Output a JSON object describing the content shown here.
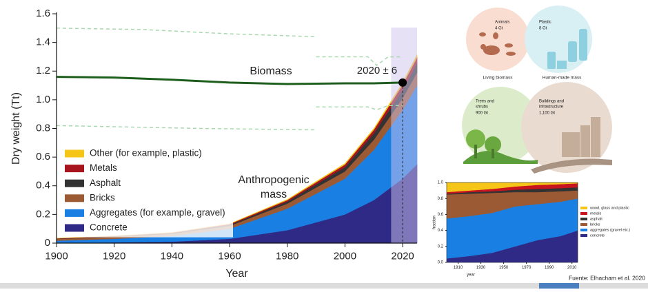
{
  "chart_data": [
    {
      "type": "area",
      "stacked": true,
      "x_label": "Year",
      "y_label": "Dry weight (Tt)",
      "x": [
        1900,
        1920,
        1940,
        1960,
        1980,
        2000,
        2010,
        2020,
        2025
      ],
      "xlim": [
        1900,
        2025
      ],
      "ylim": [
        0,
        1.6
      ],
      "xticks": [
        1900,
        1920,
        1940,
        1960,
        1980,
        2000,
        2020
      ],
      "yticks": [
        0,
        0.2,
        0.4,
        0.6,
        0.8,
        {
          "value": 1,
          "label": "1.0"
        },
        1.2,
        1.4,
        1.6
      ],
      "grid": false,
      "legend": "lower left",
      "series": [
        {
          "name": "Concrete",
          "color": "#2f2a86",
          "values": [
            0.002,
            0.005,
            0.01,
            0.03,
            0.09,
            0.2,
            0.3,
            0.45,
            0.55
          ]
        },
        {
          "name": "Aggregates (for example, gravel)",
          "color": "#1a7fe2",
          "values": [
            0.015,
            0.025,
            0.04,
            0.07,
            0.15,
            0.25,
            0.35,
            0.48,
            0.55
          ]
        },
        {
          "name": "Bricks",
          "color": "#9c5a34",
          "values": [
            0.012,
            0.014,
            0.015,
            0.02,
            0.035,
            0.05,
            0.07,
            0.08,
            0.09
          ]
        },
        {
          "name": "Asphalt",
          "color": "#333333",
          "values": [
            0.002,
            0.003,
            0.004,
            0.007,
            0.015,
            0.03,
            0.045,
            0.06,
            0.065
          ]
        },
        {
          "name": "Metals",
          "color": "#a8141e",
          "values": [
            0.002,
            0.003,
            0.004,
            0.006,
            0.01,
            0.018,
            0.025,
            0.035,
            0.04
          ]
        },
        {
          "name": "Other (for example, plastic)",
          "color": "#f5c518",
          "values": [
            0.001,
            0.001,
            0.001,
            0.002,
            0.005,
            0.008,
            0.01,
            0.015,
            0.02
          ]
        }
      ],
      "area_label": [
        "Anthropogenic",
        "mass"
      ],
      "line": {
        "name": "Biomass",
        "color": "#1d5e1d",
        "values": [
          1.16,
          1.155,
          1.14,
          1.12,
          1.11,
          1.115,
          1.115,
          1.12,
          null
        ]
      },
      "bounds_color": "#a9d8b0",
      "bounds": [
        {
          "x": [
            1900,
            1930,
            1960,
            1990
          ],
          "values": [
            1.5,
            1.49,
            1.46,
            1.44
          ]
        },
        {
          "x": [
            1900,
            1950,
            1990
          ],
          "values": [
            0.82,
            0.8,
            0.79
          ]
        },
        {
          "x": [
            1990,
            2008,
            2011,
            2015,
            2020
          ],
          "values": [
            1.3,
            1.3,
            1.24,
            1.3,
            1.3
          ]
        },
        {
          "x": [
            1990,
            2008,
            2011,
            2015,
            2020
          ],
          "values": [
            0.95,
            0.95,
            0.93,
            0.96,
            0.96
          ]
        }
      ],
      "band": [
        2016,
        2025
      ],
      "marker": {
        "x": 2020,
        "y": 1.12,
        "label": "2020 ± 6"
      }
    },
    {
      "type": "area",
      "stacked": true,
      "x_label": "year",
      "y_label": "fraction",
      "x": [
        1900,
        1920,
        1940,
        1960,
        1980,
        2000,
        2015
      ],
      "xlim": [
        1900,
        2015
      ],
      "ylim": [
        0,
        1
      ],
      "xticks": [
        1910,
        1930,
        1950,
        1970,
        1990,
        2010
      ],
      "yticks": [
        {
          "value": 0,
          "label": "0.0"
        },
        0.2,
        0.4,
        0.6,
        0.8,
        {
          "value": 1,
          "label": "1.0"
        }
      ],
      "grid": false,
      "legend": "right",
      "series": [
        {
          "name": "concrete",
          "color": "#2f2a86",
          "values": [
            0.05,
            0.08,
            0.12,
            0.2,
            0.28,
            0.33,
            0.4
          ]
        },
        {
          "name": "aggregates (gravel etc.)",
          "color": "#1a7fe2",
          "values": [
            0.5,
            0.5,
            0.5,
            0.5,
            0.45,
            0.43,
            0.4
          ]
        },
        {
          "name": "bricks",
          "color": "#9c5a34",
          "values": [
            0.3,
            0.28,
            0.25,
            0.18,
            0.15,
            0.13,
            0.1
          ]
        },
        {
          "name": "asphalt",
          "color": "#333333",
          "values": [
            0.01,
            0.02,
            0.02,
            0.03,
            0.04,
            0.04,
            0.04
          ]
        },
        {
          "name": "metals",
          "color": "#c8141e",
          "values": [
            0.02,
            0.02,
            0.03,
            0.04,
            0.05,
            0.05,
            0.05
          ]
        },
        {
          "name": "wood, glass and plastic",
          "color": "#f5c518",
          "values": [
            0.12,
            0.1,
            0.08,
            0.05,
            0.03,
            0.02,
            0.01
          ]
        }
      ]
    }
  ],
  "infographic": {
    "animals": {
      "name": "Animals",
      "value": "4 Gt"
    },
    "plastic": {
      "name": "Plastic",
      "value": "8 Gt"
    },
    "living_biomass": "Living biomass",
    "human_made_mass": "Human-made mass",
    "trees": {
      "name": [
        "Trees and",
        "shrubs"
      ],
      "value": "900 Gt"
    },
    "buildings": {
      "name": [
        "Buildings and",
        "infrastructure"
      ],
      "value": "1,100 Gt"
    }
  },
  "source": "Fuente: Elhacham et al. 2020"
}
